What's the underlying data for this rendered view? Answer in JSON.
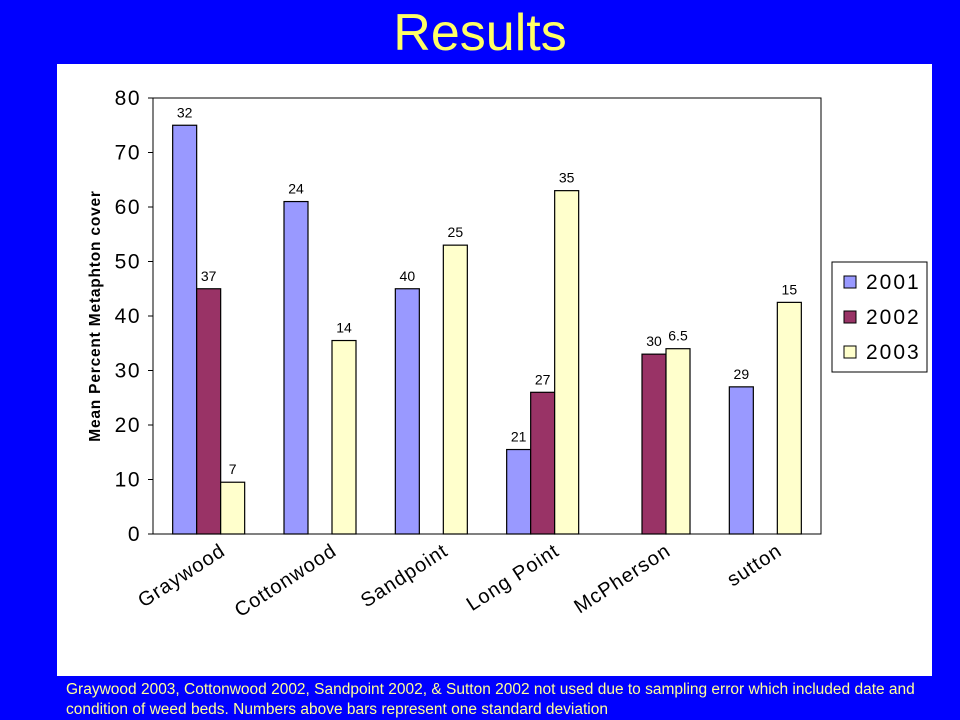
{
  "title": "Results",
  "caption": "Graywood 2003, Cottonwood 2002, Sandpoint 2002, & Sutton 2002 not used due to sampling error which included date and condition of weed beds. Numbers above bars represent  one standard deviation",
  "colors": {
    "background": "#0000FF",
    "title_text": "#FFFF66",
    "caption_text": "#FFFF99",
    "panel": "#FFFFFF"
  },
  "chart_data": {
    "type": "bar",
    "ylabel": "Mean Percent Metaphton cover",
    "xlabel": "",
    "ylim": [
      0,
      80
    ],
    "yticks": [
      0,
      10,
      20,
      30,
      40,
      50,
      60,
      70,
      80
    ],
    "grid": false,
    "legend_position": "right",
    "categories": [
      "Graywood",
      "Cottonwood",
      "Sandpoint",
      "Long Point",
      "McPherson",
      "sutton"
    ],
    "series": [
      {
        "name": "2001",
        "color": "#9999FF",
        "values": [
          75,
          61,
          45,
          15.5,
          null,
          27
        ],
        "labels": [
          "32",
          "24",
          "40",
          "21",
          null,
          "29"
        ]
      },
      {
        "name": "2002",
        "color": "#993366",
        "values": [
          45,
          null,
          null,
          26,
          33,
          null
        ],
        "labels": [
          "37",
          null,
          null,
          "27",
          "30",
          null
        ]
      },
      {
        "name": "2003",
        "color": "#FFFFCC",
        "values": [
          9.5,
          35.5,
          53,
          63,
          34,
          42.5
        ],
        "labels": [
          "7",
          "14",
          "25",
          "35",
          "6.5",
          "15"
        ]
      }
    ]
  }
}
